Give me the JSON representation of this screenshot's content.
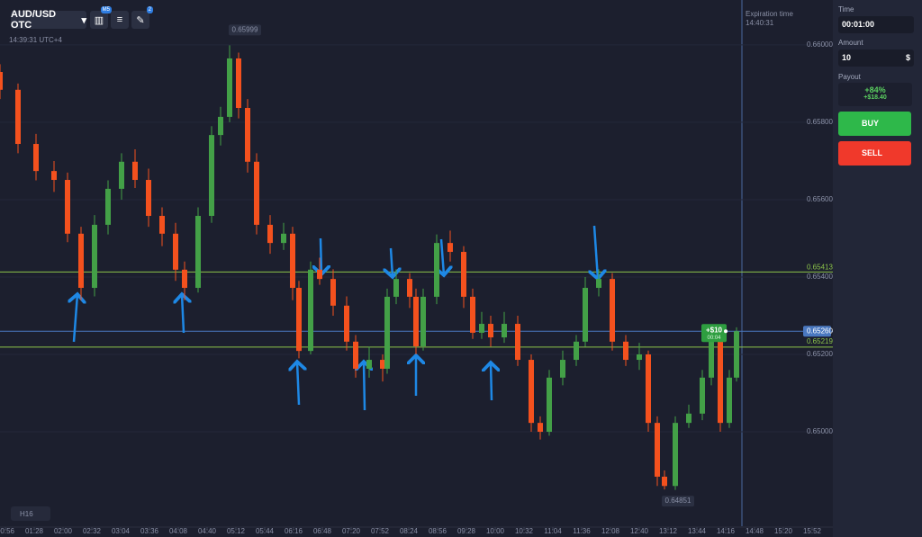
{
  "toolbar": {
    "pair": "AUD/USD OTC",
    "indicator_badge": "M5",
    "drawings_badge": "2"
  },
  "server_time": "14:39:31 UTC+4",
  "timeframe": "H16",
  "expiration": {
    "label": "Expiration time",
    "time": "14:40:31"
  },
  "chart_data": {
    "type": "candlestick",
    "x": [
      50,
      70,
      90,
      110,
      125,
      140,
      155,
      170,
      185,
      200,
      215,
      230,
      245,
      255,
      270,
      285,
      295,
      305,
      315,
      325,
      335,
      350,
      365,
      375,
      382,
      395,
      405,
      420,
      435,
      445,
      460,
      475,
      480,
      490,
      505,
      512,
      520,
      535,
      550,
      565,
      575,
      585,
      595,
      610,
      625,
      640,
      650,
      660,
      675,
      690,
      700,
      715,
      730,
      745,
      760,
      770,
      780,
      788,
      800,
      815,
      830,
      840,
      850,
      860,
      868
    ],
    "open": [
      0.6593,
      0.65884,
      0.65744,
      0.65674,
      0.65651,
      0.65512,
      0.65372,
      0.65535,
      0.65628,
      0.65698,
      0.65651,
      0.65558,
      0.65512,
      0.65419,
      0.65372,
      0.65558,
      0.65767,
      0.65814,
      0.65965,
      0.65837,
      0.65698,
      0.65535,
      0.65488,
      0.65512,
      0.65372,
      0.65209,
      0.65419,
      0.65395,
      0.65326,
      0.65233,
      0.65163,
      0.65186,
      0.65163,
      0.65349,
      0.65395,
      0.65349,
      0.65221,
      0.65349,
      0.65488,
      0.65465,
      0.65349,
      0.65256,
      0.65279,
      0.65244,
      0.65279,
      0.65186,
      0.65023,
      0.65,
      0.6514,
      0.65186,
      0.65233,
      0.65372,
      0.65395,
      0.65233,
      0.65186,
      0.652,
      0.65023,
      0.64884,
      0.6486,
      0.65023,
      0.65047,
      0.6514,
      0.65233,
      0.65023,
      0.6514
    ],
    "high": [
      0.6595,
      0.659,
      0.6577,
      0.657,
      0.6567,
      0.6553,
      0.6556,
      0.6565,
      0.6572,
      0.6573,
      0.6568,
      0.6558,
      0.6554,
      0.6544,
      0.6558,
      0.6579,
      0.6584,
      0.65999,
      0.6598,
      0.6586,
      0.6572,
      0.6556,
      0.6554,
      0.6553,
      0.6539,
      0.6544,
      0.6545,
      0.6542,
      0.6535,
      0.6525,
      0.6522,
      0.652,
      0.6537,
      0.6542,
      0.6541,
      0.6537,
      0.6537,
      0.6551,
      0.6552,
      0.6548,
      0.6537,
      0.6531,
      0.653,
      0.6531,
      0.653,
      0.652,
      0.6504,
      0.6516,
      0.6521,
      0.6525,
      0.654,
      0.6542,
      0.6541,
      0.6525,
      0.6523,
      0.6521,
      0.6504,
      0.649,
      0.6504,
      0.6507,
      0.6516,
      0.6526,
      0.6526,
      0.6516,
      0.6527
    ],
    "low": [
      0.6586,
      0.6572,
      0.6565,
      0.6562,
      0.6549,
      0.6534,
      0.6535,
      0.6551,
      0.656,
      0.6563,
      0.6553,
      0.6548,
      0.6539,
      0.6534,
      0.6536,
      0.6554,
      0.6574,
      0.658,
      0.6581,
      0.6567,
      0.6551,
      0.6546,
      0.6547,
      0.6534,
      0.6519,
      0.652,
      0.6538,
      0.653,
      0.6521,
      0.6514,
      0.6514,
      0.6513,
      0.6515,
      0.6533,
      0.6532,
      0.652,
      0.6521,
      0.6533,
      0.6544,
      0.6532,
      0.6524,
      0.6524,
      0.6522,
      0.6523,
      0.6517,
      0.65,
      0.6498,
      0.6499,
      0.6512,
      0.6517,
      0.6522,
      0.6535,
      0.6521,
      0.6517,
      0.6516,
      0.65,
      0.6486,
      0.64851,
      0.6485,
      0.6501,
      0.6503,
      0.6512,
      0.65,
      0.6501,
      0.6513
    ],
    "close": [
      0.65884,
      0.65744,
      0.65674,
      0.65651,
      0.65512,
      0.65372,
      0.65535,
      0.65628,
      0.65698,
      0.65651,
      0.65558,
      0.65512,
      0.65419,
      0.65372,
      0.65558,
      0.65767,
      0.65814,
      0.65965,
      0.65837,
      0.65698,
      0.65535,
      0.65488,
      0.65512,
      0.65372,
      0.65209,
      0.65419,
      0.65395,
      0.65326,
      0.65233,
      0.65163,
      0.65186,
      0.65163,
      0.65349,
      0.65395,
      0.65349,
      0.65221,
      0.65349,
      0.65488,
      0.65465,
      0.65349,
      0.65256,
      0.65279,
      0.65244,
      0.65279,
      0.65186,
      0.65023,
      0.65,
      0.6514,
      0.65186,
      0.65233,
      0.65372,
      0.65395,
      0.65233,
      0.65186,
      0.652,
      0.65023,
      0.64884,
      0.6486,
      0.65023,
      0.65047,
      0.6514,
      0.65233,
      0.65023,
      0.6514,
      0.6526
    ],
    "up_color": "#43a047",
    "down_color": "#f4511e",
    "xlim": [
      50,
      975
    ],
    "xticks": [
      {
        "value": 56,
        "label": "00:56"
      },
      {
        "value": 88,
        "label": "01:28"
      },
      {
        "value": 120,
        "label": "02:00"
      },
      {
        "value": 152,
        "label": "02:32"
      },
      {
        "value": 184,
        "label": "03:04"
      },
      {
        "value": 216,
        "label": "03:36"
      },
      {
        "value": 248,
        "label": "04:08"
      },
      {
        "value": 280,
        "label": "04:40"
      },
      {
        "value": 312,
        "label": "05:12"
      },
      {
        "value": 344,
        "label": "05:44"
      },
      {
        "value": 376,
        "label": "06:16"
      },
      {
        "value": 408,
        "label": "06:48"
      },
      {
        "value": 440,
        "label": "07:20"
      },
      {
        "value": 472,
        "label": "07:52"
      },
      {
        "value": 504,
        "label": "08:24"
      },
      {
        "value": 536,
        "label": "08:56"
      },
      {
        "value": 568,
        "label": "09:28"
      },
      {
        "value": 600,
        "label": "10:00"
      },
      {
        "value": 632,
        "label": "10:32"
      },
      {
        "value": 664,
        "label": "11:04"
      },
      {
        "value": 696,
        "label": "11:36"
      },
      {
        "value": 728,
        "label": "12:08"
      },
      {
        "value": 760,
        "label": "12:40"
      },
      {
        "value": 792,
        "label": "13:12"
      },
      {
        "value": 824,
        "label": "13:44"
      },
      {
        "value": 856,
        "label": "14:16"
      },
      {
        "value": 888,
        "label": "14:48"
      },
      {
        "value": 920,
        "label": "15:20"
      },
      {
        "value": 952,
        "label": "15:52"
      }
    ],
    "ylim": [
      0.64756,
      0.66116
    ],
    "yticks": [
      {
        "value": 0.66,
        "label": "0.66000"
      },
      {
        "value": 0.658,
        "label": "0.65800"
      },
      {
        "value": 0.656,
        "label": "0.65600"
      },
      {
        "value": 0.654,
        "label": "0.65400"
      },
      {
        "value": 0.652,
        "label": "0.65200"
      },
      {
        "value": 0.65,
        "label": "0.65000"
      }
    ],
    "levels": [
      {
        "value": 0.65413,
        "label": "0.65413",
        "color": "#8bc34a"
      },
      {
        "value": 0.65219,
        "label": "0.65219",
        "color": "#8bc34a"
      },
      {
        "value": 0.6526,
        "label": "0.65260",
        "color": "#4a78c0"
      }
    ],
    "annotations": [
      {
        "x": 322,
        "value": 0.65999,
        "label": "0.65999"
      },
      {
        "x": 803,
        "value": 0.64851,
        "label": "0.64851"
      }
    ],
    "trade": {
      "x": 853,
      "value": 0.6526,
      "label": "+$10",
      "timer": "00:04"
    }
  },
  "panel": {
    "time_label": "Time",
    "time": "00:01:00",
    "amount_label": "Amount",
    "amount": "10",
    "currency": "$",
    "payout_label": "Payout",
    "payout_percent": "+84%",
    "payout_amount": "+$18.40",
    "buy": "BUY",
    "sell": "SELL"
  }
}
